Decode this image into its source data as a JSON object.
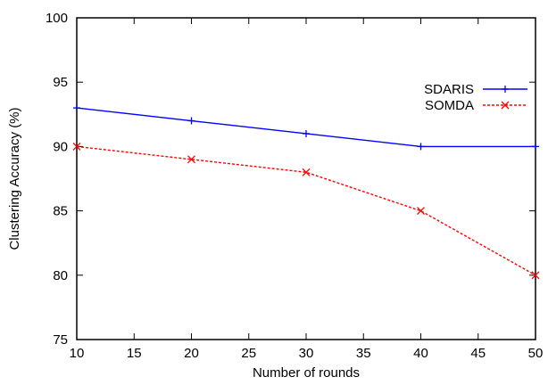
{
  "chart_data": {
    "type": "line",
    "title": "",
    "xlabel": "Number of rounds",
    "ylabel": "Clustering Accuracy (%)",
    "xlim": [
      10,
      50
    ],
    "ylim": [
      75,
      100
    ],
    "xticks": [
      10,
      15,
      20,
      25,
      30,
      35,
      40,
      45,
      50
    ],
    "yticks": [
      75,
      80,
      85,
      90,
      95,
      100
    ],
    "grid": false,
    "legend_position": "top-right",
    "series": [
      {
        "name": "SDARIS",
        "x": [
          10,
          20,
          30,
          40,
          50
        ],
        "values": [
          93,
          92,
          91,
          90,
          90
        ],
        "color": "#0000ff",
        "line_style": "solid",
        "marker": "plus"
      },
      {
        "name": "SOMDA",
        "x": [
          10,
          20,
          30,
          40,
          50
        ],
        "values": [
          90,
          89,
          88,
          85,
          80
        ],
        "color": "#ff0000",
        "line_style": "dashed",
        "marker": "cross"
      }
    ]
  }
}
